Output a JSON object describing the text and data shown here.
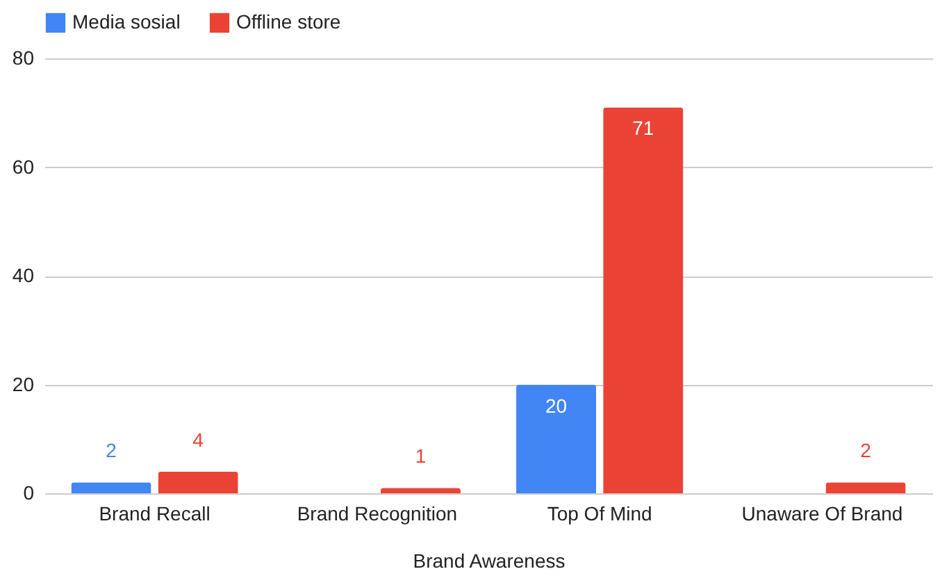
{
  "chart_data": {
    "type": "bar",
    "xlabel": "Brand Awareness",
    "categories": [
      "Brand Recall",
      "Brand Recognition",
      "Top Of Mind",
      "Unaware Of Brand"
    ],
    "series": [
      {
        "name": "Media sosial",
        "color": "#4285f4",
        "values": [
          2,
          null,
          20,
          null
        ]
      },
      {
        "name": "Offline store",
        "color": "#ea4335",
        "values": [
          4,
          1,
          71,
          2
        ]
      }
    ],
    "ylim": [
      0,
      80
    ],
    "yticks": [
      0,
      20,
      40,
      60,
      80
    ],
    "grid": "y",
    "legend": "top",
    "data_labels": true
  }
}
